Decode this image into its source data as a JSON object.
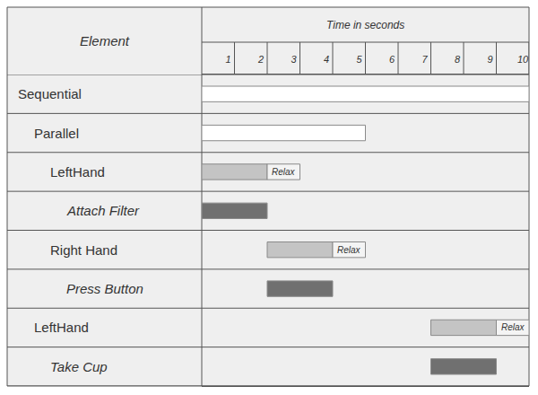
{
  "chart_data": {
    "type": "gantt",
    "x_label": "Time in seconds",
    "y_label": "Element",
    "xlim": [
      0,
      10
    ],
    "xticks": [
      1,
      2,
      3,
      4,
      5,
      6,
      7,
      8,
      9,
      10
    ],
    "grid": true,
    "rows": [
      {
        "label": "Sequential",
        "level": 0,
        "type": "element",
        "bars": [
          {
            "start": 0,
            "end": 10,
            "color": "#ffffff"
          }
        ]
      },
      {
        "label": "Parallel",
        "level": 1,
        "type": "element",
        "bars": [
          {
            "start": 0,
            "end": 5,
            "color": "#ffffff"
          }
        ]
      },
      {
        "label": "LeftHand",
        "level": 2,
        "type": "element",
        "bars": [
          {
            "start": 0,
            "end": 2,
            "color": "#c4c4c4"
          },
          {
            "start": 2,
            "end": 3,
            "color": "#f4f4f4",
            "label": "Relax"
          }
        ]
      },
      {
        "label": "Attach Filter",
        "level": 3,
        "type": "action",
        "bars": [
          {
            "start": 0,
            "end": 2,
            "color": "#707070"
          }
        ]
      },
      {
        "label": "Right Hand",
        "level": 2,
        "type": "element",
        "bars": [
          {
            "start": 2,
            "end": 4,
            "color": "#c4c4c4"
          },
          {
            "start": 4,
            "end": 5,
            "color": "#f4f4f4",
            "label": "Relax"
          }
        ]
      },
      {
        "label": "Press Button",
        "level": 3,
        "type": "action",
        "bars": [
          {
            "start": 2,
            "end": 4,
            "color": "#707070"
          }
        ]
      },
      {
        "label": "LeftHand",
        "level": 1,
        "type": "element",
        "bars": [
          {
            "start": 7,
            "end": 9,
            "color": "#c4c4c4"
          },
          {
            "start": 9,
            "end": 10,
            "color": "#f4f4f4",
            "label": "Relax"
          }
        ]
      },
      {
        "label": "Take Cup",
        "level": 2,
        "type": "action",
        "bars": [
          {
            "start": 7,
            "end": 9,
            "color": "#707070"
          }
        ]
      }
    ]
  }
}
